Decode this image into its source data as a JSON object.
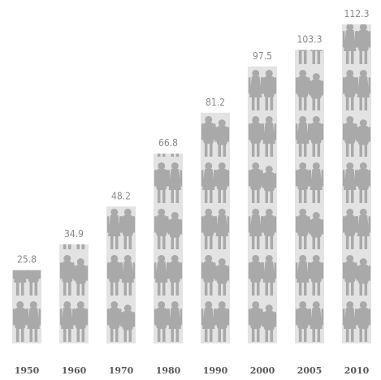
{
  "chart_data": {
    "type": "bar",
    "style": "pictograph",
    "categories": [
      "1950",
      "1960",
      "1970",
      "1980",
      "1990",
      "2000",
      "2005",
      "2010"
    ],
    "values": [
      25.8,
      34.9,
      48.2,
      66.8,
      81.2,
      97.5,
      103.3,
      112.3
    ],
    "value_labels": [
      "25.8",
      "34.9",
      "48.2",
      "66.8",
      "81.2",
      "97.5",
      "103.3",
      "112.3"
    ],
    "title": "",
    "xlabel": "",
    "ylabel": "",
    "ylim": [
      0,
      112.3
    ],
    "grid": false,
    "legend": "none",
    "colors": {
      "bar_background": "#e3e3e3",
      "figure": "#a9a9a9",
      "value_text": "#8a8a8a",
      "year_text": "#5a5a5a"
    },
    "icon": "person-pair-icon"
  }
}
